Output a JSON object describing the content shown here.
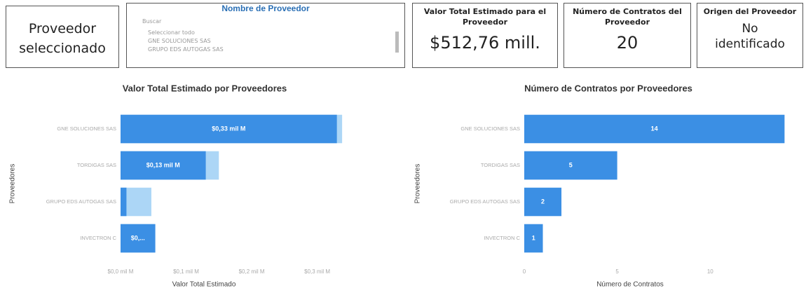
{
  "cards": [
    {
      "value": "Proveedor seleccionado"
    },
    {
      "label": "Valor Total Estimado para el Proveedor",
      "value": "$512,76 mill."
    },
    {
      "label": "Número de Contratos del Proveedor",
      "value": "20"
    },
    {
      "label": "Origen del Proveedor",
      "value": "No identificado"
    }
  ],
  "slicer": {
    "title": "Nombre de Proveedor",
    "search": "Buscar",
    "items": [
      "Seleccionar todo",
      "GNE SOLUCIONES SAS",
      "GRUPO EDS AUTOGAS SAS"
    ]
  },
  "chart_data": [
    {
      "type": "bar",
      "orientation": "horizontal",
      "title": "Valor Total Estimado por Proveedores",
      "x_label": "Valor Total Estimado",
      "y_label": "Proveedores",
      "categories": [
        "GNE SOLUCIONES SAS",
        "TORDIGAS SAS",
        "GRUPO EDS AUTOGAS SAS",
        "INVECTRON C"
      ],
      "series": [
        {
          "color": "#acd6f6",
          "values": [
            0.338,
            0.15,
            0.047,
            0.053
          ]
        },
        {
          "color": "#3b8fe4",
          "values": [
            0.33,
            0.13,
            0.009,
            0.053
          ],
          "value_labels": [
            "$0,33 mil M",
            "$0,13 mil M",
            null,
            "$0,..."
          ]
        }
      ],
      "xlim": [
        0,
        0.34
      ],
      "xticks": [
        {
          "value": 0,
          "label": "$0,0 mil M"
        },
        {
          "value": 0.1,
          "label": "$0,1 mil M"
        },
        {
          "value": 0.2,
          "label": "$0,2 mil M"
        },
        {
          "value": 0.3,
          "label": "$0,3 mil M"
        }
      ]
    },
    {
      "type": "bar",
      "orientation": "horizontal",
      "title": "Número de Contratos por Proveedores",
      "x_label": "Número de Contratos",
      "y_label": "Proveedores",
      "categories": [
        "GNE SOLUCIONES SAS",
        "TORDIGAS SAS",
        "GRUPO EDS AUTOGAS SAS",
        "INVECTRON C"
      ],
      "series": [
        {
          "color": "#3b8fe4",
          "values": [
            14,
            5,
            2,
            1
          ]
        }
      ],
      "xlim": [
        0,
        14.4
      ],
      "xticks": [
        0,
        5,
        10
      ]
    }
  ]
}
